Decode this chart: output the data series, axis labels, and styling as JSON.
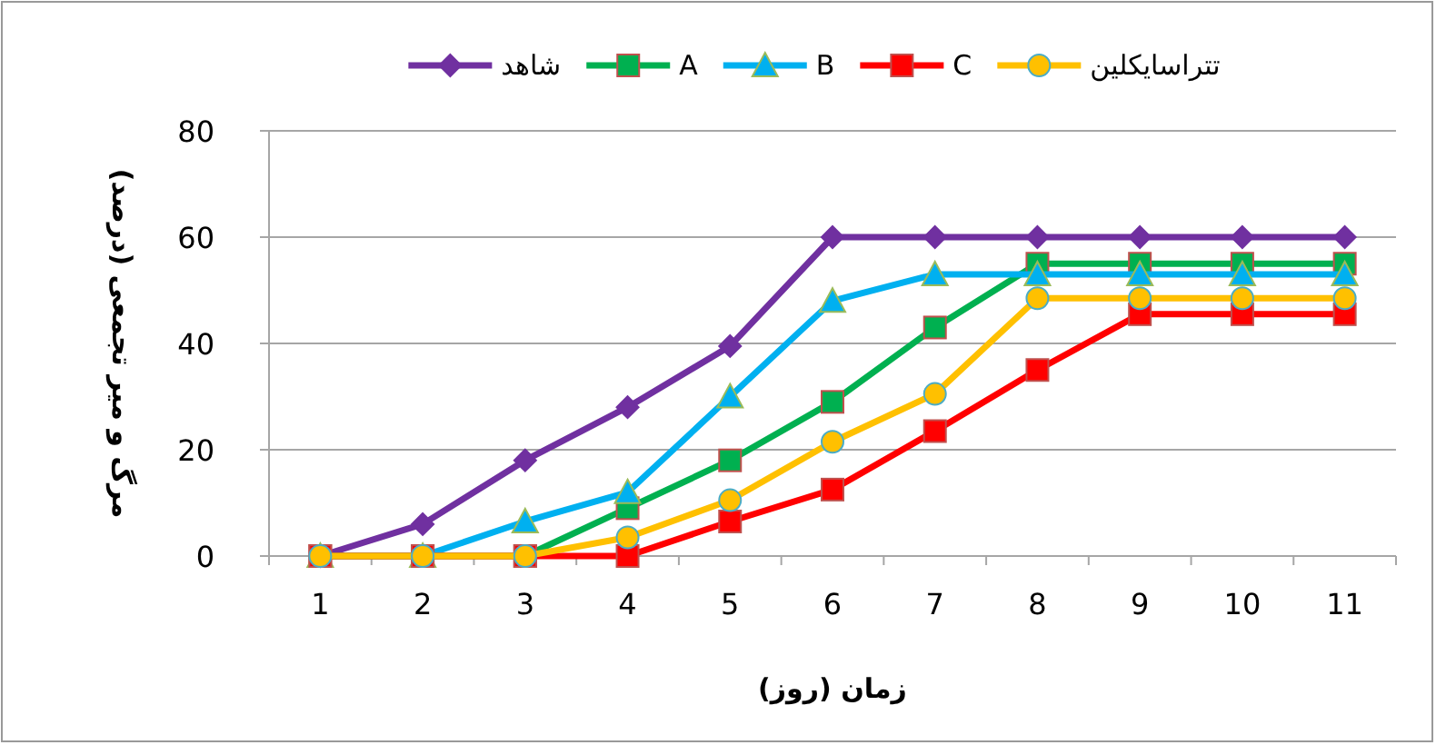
{
  "chart_data": {
    "type": "line",
    "xlabel": "زمان (روز)",
    "ylabel": "مرگ و میر تجمعی (درصد)",
    "categories": [
      "1",
      "2",
      "3",
      "4",
      "5",
      "6",
      "7",
      "8",
      "9",
      "10",
      "11"
    ],
    "ylim": [
      0,
      80
    ],
    "yticks": [
      0,
      20,
      40,
      60,
      80
    ],
    "grid": "y",
    "legend": "top",
    "series": [
      {
        "name": "شاهد",
        "color": "#7030a0",
        "marker": "diamond",
        "values": [
          0,
          6,
          18,
          28,
          39.5,
          60,
          60,
          60,
          60,
          60,
          60
        ]
      },
      {
        "name": "A",
        "color": "#00b050",
        "marker": "square",
        "values": [
          0,
          0,
          0,
          9,
          18,
          29,
          43,
          55,
          55,
          55,
          55
        ]
      },
      {
        "name": "B",
        "color": "#00b0f0",
        "marker": "triangle",
        "values": [
          0,
          0,
          6.5,
          12,
          30,
          48,
          53,
          53,
          53,
          53,
          53
        ]
      },
      {
        "name": "C",
        "color": "#ff0000",
        "marker": "square",
        "values": [
          0,
          0,
          0,
          0,
          6.5,
          12.5,
          23.5,
          35,
          45.5,
          45.5,
          45.5
        ]
      },
      {
        "name": "تتراسایکلین",
        "color": "#ffc000",
        "marker": "circle",
        "values": [
          0,
          0,
          0,
          3.5,
          10.5,
          21.5,
          30.5,
          48.5,
          48.5,
          48.5,
          48.5
        ]
      }
    ]
  }
}
